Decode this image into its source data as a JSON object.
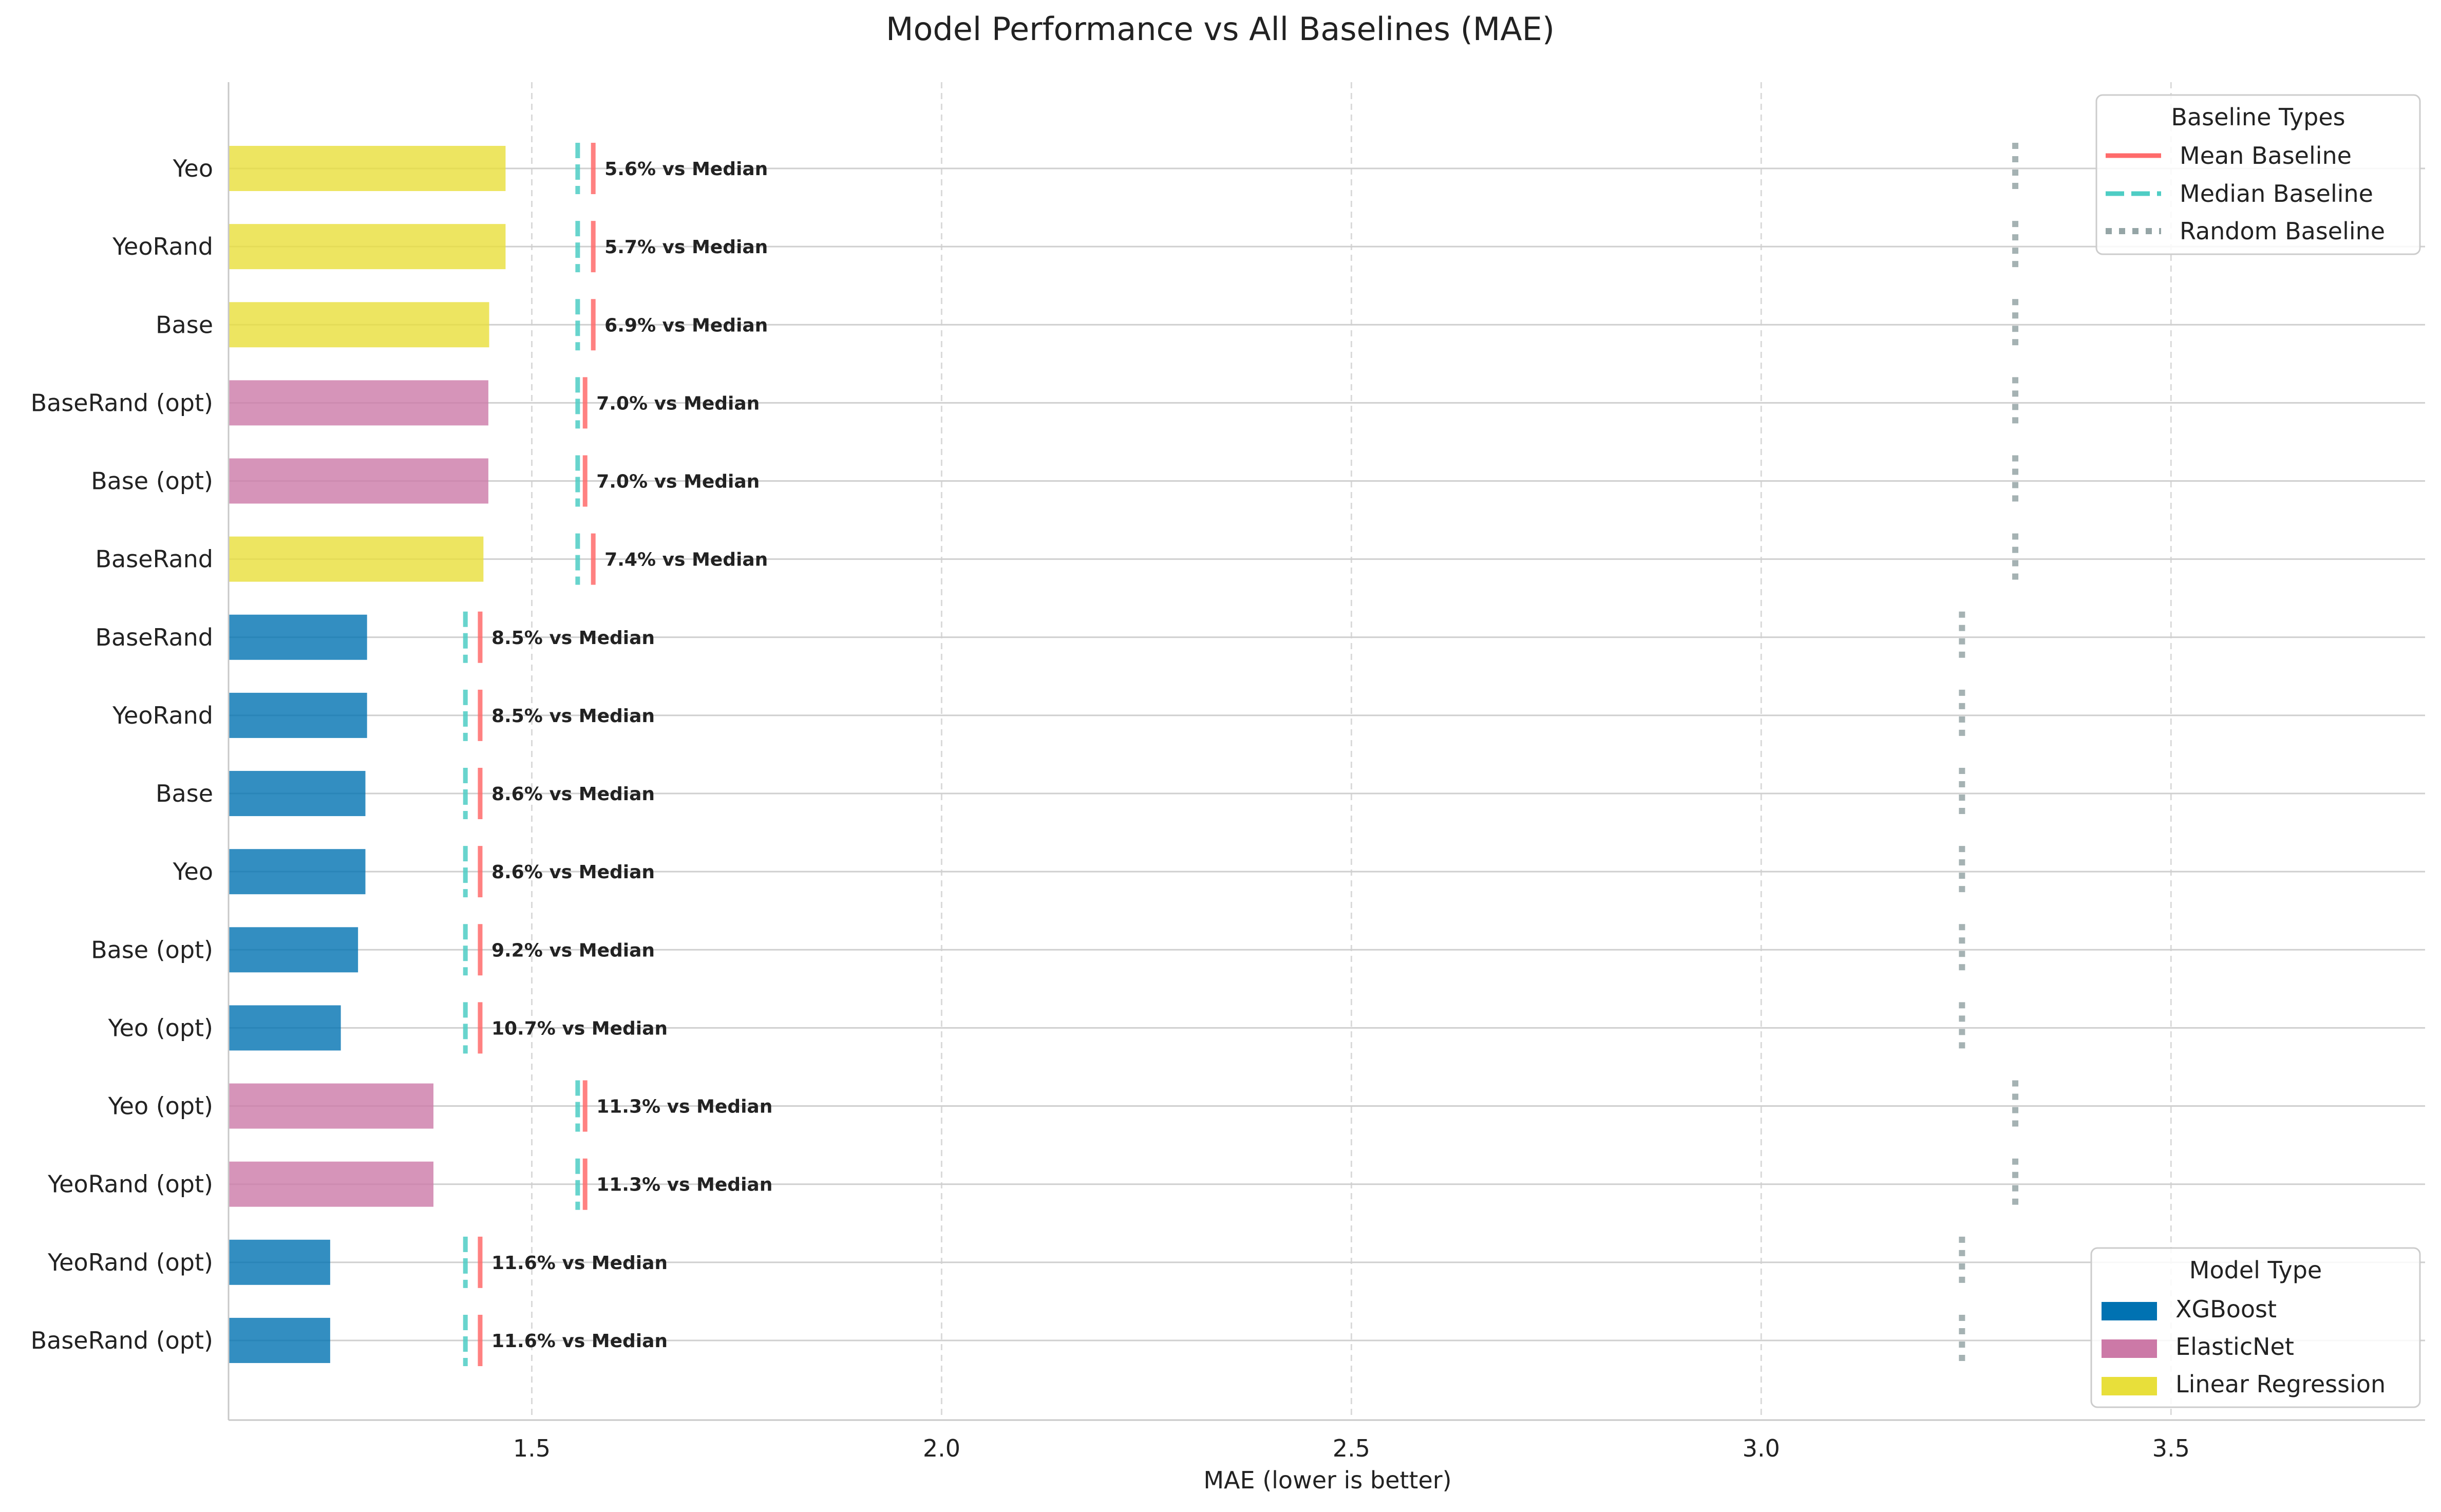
{
  "chart_data": {
    "type": "bar",
    "orientation": "horizontal",
    "title": "Model Performance vs All Baselines (MAE)",
    "xlabel": "MAE (lower is better)",
    "ylabel": "",
    "xlim": [
      1.13,
      3.81
    ],
    "xticks": [
      1.5,
      2.0,
      2.5,
      3.0,
      3.5
    ],
    "xtick_labels": [
      "1.5",
      "2.0",
      "2.5",
      "3.0",
      "3.5"
    ],
    "grid": "vertical dashed",
    "colors": {
      "XGBoost": "#0072B2",
      "ElasticNet": "#CC79A7",
      "Linear Regression": "#E8DF3A",
      "mean_baseline": "#FF6B6B",
      "median_baseline": "#4ECDC4",
      "random_baseline": "#95A5A6"
    },
    "rows": [
      {
        "label": "Yeo",
        "model": "Linear Regression",
        "mae": 1.468,
        "mean": 1.575,
        "median": 1.556,
        "random": 3.31,
        "annotation": "5.6% vs Median"
      },
      {
        "label": "YeoRand",
        "model": "Linear Regression",
        "mae": 1.468,
        "mean": 1.575,
        "median": 1.556,
        "random": 3.31,
        "annotation": "5.7% vs Median"
      },
      {
        "label": "Base",
        "model": "Linear Regression",
        "mae": 1.448,
        "mean": 1.575,
        "median": 1.556,
        "random": 3.31,
        "annotation": "6.9% vs Median"
      },
      {
        "label": "BaseRand (opt)",
        "model": "ElasticNet",
        "mae": 1.447,
        "mean": 1.565,
        "median": 1.556,
        "random": 3.31,
        "annotation": "7.0% vs Median"
      },
      {
        "label": "Base (opt)",
        "model": "ElasticNet",
        "mae": 1.447,
        "mean": 1.565,
        "median": 1.556,
        "random": 3.31,
        "annotation": "7.0% vs Median"
      },
      {
        "label": "BaseRand",
        "model": "Linear Regression",
        "mae": 1.441,
        "mean": 1.575,
        "median": 1.556,
        "random": 3.31,
        "annotation": "7.4% vs Median"
      },
      {
        "label": "BaseRand",
        "model": "XGBoost",
        "mae": 1.299,
        "mean": 1.437,
        "median": 1.419,
        "random": 3.245,
        "annotation": "8.5% vs Median"
      },
      {
        "label": "YeoRand",
        "model": "XGBoost",
        "mae": 1.299,
        "mean": 1.437,
        "median": 1.419,
        "random": 3.245,
        "annotation": "8.5% vs Median"
      },
      {
        "label": "Base",
        "model": "XGBoost",
        "mae": 1.297,
        "mean": 1.437,
        "median": 1.419,
        "random": 3.245,
        "annotation": "8.6% vs Median"
      },
      {
        "label": "Yeo",
        "model": "XGBoost",
        "mae": 1.297,
        "mean": 1.437,
        "median": 1.419,
        "random": 3.245,
        "annotation": "8.6% vs Median"
      },
      {
        "label": "Base (opt)",
        "model": "XGBoost",
        "mae": 1.288,
        "mean": 1.437,
        "median": 1.419,
        "random": 3.245,
        "annotation": "9.2% vs Median"
      },
      {
        "label": "Yeo (opt)",
        "model": "XGBoost",
        "mae": 1.267,
        "mean": 1.437,
        "median": 1.419,
        "random": 3.245,
        "annotation": "10.7% vs Median"
      },
      {
        "label": "Yeo (opt)",
        "model": "ElasticNet",
        "mae": 1.38,
        "mean": 1.565,
        "median": 1.556,
        "random": 3.31,
        "annotation": "11.3% vs Median"
      },
      {
        "label": "YeoRand (opt)",
        "model": "ElasticNet",
        "mae": 1.38,
        "mean": 1.565,
        "median": 1.556,
        "random": 3.31,
        "annotation": "11.3% vs Median"
      },
      {
        "label": "YeoRand (opt)",
        "model": "XGBoost",
        "mae": 1.254,
        "mean": 1.437,
        "median": 1.419,
        "random": 3.245,
        "annotation": "11.6% vs Median"
      },
      {
        "label": "BaseRand (opt)",
        "model": "XGBoost",
        "mae": 1.254,
        "mean": 1.437,
        "median": 1.419,
        "random": 3.245,
        "annotation": "11.6% vs Median"
      }
    ],
    "legend_baselines": {
      "title": "Baseline Types",
      "placement": "top-right",
      "items": [
        {
          "label": "Mean Baseline",
          "style": "solid",
          "color": "#FF6B6B"
        },
        {
          "label": "Median Baseline",
          "style": "dashed",
          "color": "#4ECDC4"
        },
        {
          "label": "Random Baseline",
          "style": "dotted",
          "color": "#95A5A6"
        }
      ]
    },
    "legend_models": {
      "title": "Model Type",
      "placement": "bottom-right",
      "items": [
        {
          "label": "XGBoost",
          "color": "#0072B2"
        },
        {
          "label": "ElasticNet",
          "color": "#CC79A7"
        },
        {
          "label": "Linear Regression",
          "color": "#E8DF3A"
        }
      ]
    }
  }
}
